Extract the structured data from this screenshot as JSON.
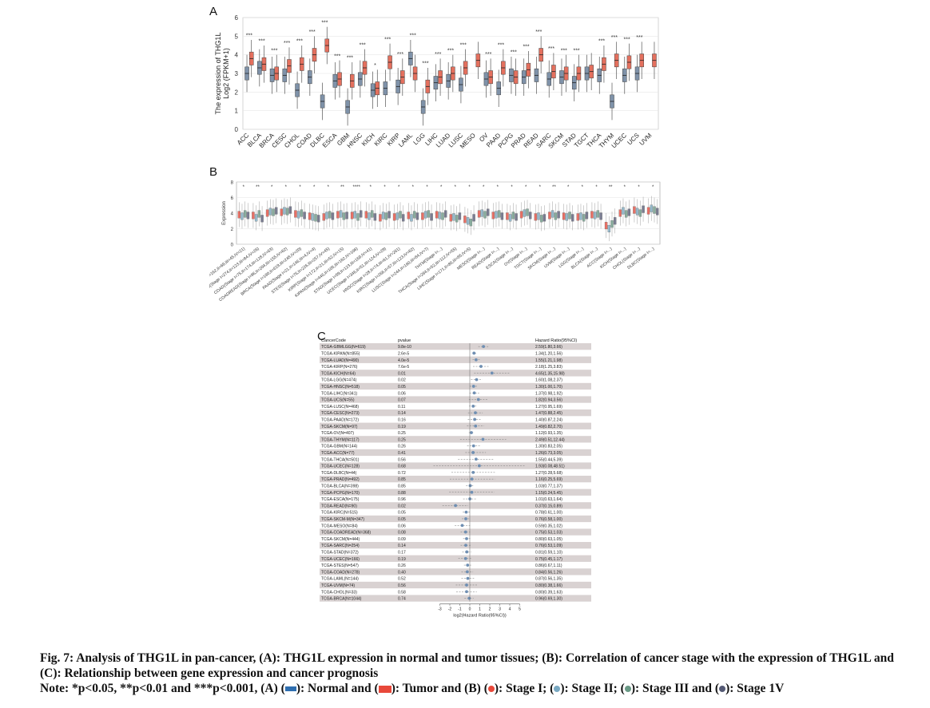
{
  "panels": {
    "a": "A",
    "b": "B",
    "c": "C"
  },
  "colors": {
    "normal": "#7f92a9",
    "tumor": "#e4705e",
    "stage1": "#e8483a",
    "stage2": "#7aa9c2",
    "stage3": "#6a9a86",
    "stage4": "#555a75",
    "forest_point": "#6f8fb3",
    "row_shade": "#d9d2d2"
  },
  "chart_data": [
    {
      "type": "boxplot",
      "title": "",
      "ylabel_line1": "The expression of THG1L",
      "ylabel_line2": "Log2 (FPKM+1)",
      "ylim": [
        0,
        6
      ],
      "yticks": [
        "0",
        "1",
        "2",
        "3",
        "4",
        "5",
        "6"
      ],
      "categories": [
        "ACC",
        "BLCA",
        "BRCA",
        "CESC",
        "CHOL",
        "COAD",
        "DLBC",
        "ESCA",
        "GBM",
        "HNSC",
        "KICH",
        "KIRC",
        "KIRP",
        "LAML",
        "LGG",
        "LIHC",
        "LUAD",
        "LUSC",
        "MESO",
        "OV",
        "PAAD",
        "PCPG",
        "PRAD",
        "READ",
        "SARC",
        "SKCM",
        "STAD",
        "TGCT",
        "THCA",
        "THYM",
        "UCEC",
        "UCS",
        "UVM"
      ],
      "normal_median": [
        3.0,
        3.3,
        2.9,
        2.9,
        2.1,
        2.8,
        1.5,
        2.6,
        1.2,
        2.7,
        2.1,
        2.2,
        2.3,
        3.8,
        1.2,
        2.5,
        2.6,
        2.4,
        null,
        2.7,
        2.2,
        2.9,
        2.8,
        2.9,
        2.7,
        2.8,
        2.5,
        3.0,
        2.9,
        1.5,
        2.9,
        3.0,
        null
      ],
      "tumor_median": [
        3.8,
        3.5,
        3.0,
        3.4,
        3.5,
        4.0,
        4.5,
        2.7,
        2.6,
        3.3,
        2.2,
        3.6,
        2.8,
        3.0,
        2.3,
        2.8,
        3.0,
        3.3,
        3.7,
        2.8,
        3.3,
        2.8,
        3.2,
        4.0,
        3.1,
        3.0,
        3.0,
        3.1,
        3.5,
        3.7,
        3.6,
        3.7,
        3.7
      ],
      "significance": [
        "***",
        "***",
        "***",
        "***",
        "***",
        "***",
        "***",
        "***",
        "***",
        "***",
        "*",
        "***",
        "***",
        "***",
        "***",
        "***",
        "***",
        "***",
        "",
        "***",
        "***",
        "***",
        "***",
        "***",
        "***",
        "***",
        "***",
        "",
        "***",
        "***",
        "***",
        "***",
        ""
      ]
    },
    {
      "type": "boxplot",
      "title": "",
      "ylabel": "Expression",
      "ylim": [
        0,
        8
      ],
      "yticks": [
        "0",
        "2",
        "4",
        "6",
        "8"
      ],
      "categories": [
        "CESC(Stage I=162,II=69,III=45,IV=21)",
        "LUAD(Stage I=274,II=123,III=84,IV=26)",
        "COAD(Stage I=75,II=174,III=128,IV=63)",
        "COADREAD(Stage I=96,II=204,III=155,IV=82)",
        "BRCA(Stage I=180,II=619,III=248,IV=20)",
        "PAAD(Stage I=21,II=146,III=4,IV=4)",
        "STES(Stage I=76,II=226,III=257,IV=45)",
        "KIRP(Stage I=172,II=21,III=52,IV=15)",
        "KIPAN(Stage I=446,II=105,III=182,IV=106)",
        "STAD(Stage I=59,II=123,III=169,IV=41)",
        "UCEC(Stage I=346,II=51,III=124,IV=29)",
        "HNSC(Stage I=28,II=74,III=81,IV=261)",
        "KIRC(Stage I=266,II=57,III=123,IV=82)",
        "LUSC(Stage I=244,II=160,III=84,IV=7)",
        "THYM(Stage I=...)",
        "THCA(Stage I=284,II=52,III=112,IV=55)",
        "LIHC(Stage I=171,II=86,III=85,IV=5)",
        "MESO(Stage I=...)",
        "READ(Stage I=...)",
        "ESCA(Stage I=...)",
        "OV(Stage I=...)",
        "TGCT(Stage I=...)",
        "SKCM(Stage I=...)",
        "UVM(Stage I=...)",
        "LGG(Stage I=...)",
        "BLCA(Stage I=...)",
        "ACC(Stage I=...)",
        "KICH(Stage I=...)",
        "CHOL(Stage I=...)",
        "DLBC(Stage I=...)"
      ],
      "stage_means": [
        [
          3.8,
          3.6,
          3.9,
          3.7
        ],
        [
          3.7,
          3.4,
          3.9,
          3.3
        ],
        [
          4.0,
          4.2,
          4.1,
          4.3
        ],
        [
          4.1,
          4.3,
          4.2,
          4.4
        ],
        [
          3.9,
          3.8,
          4.0,
          3.7
        ],
        [
          3.6,
          3.5,
          3.4,
          3.3
        ],
        [
          3.5,
          3.7,
          3.8,
          3.6
        ],
        [
          3.8,
          3.9,
          3.6,
          3.7
        ],
        [
          3.7,
          3.8,
          3.5,
          3.9
        ],
        [
          3.8,
          3.6,
          3.9,
          3.5
        ],
        [
          3.4,
          3.7,
          3.6,
          3.8
        ],
        [
          3.5,
          3.6,
          3.8,
          3.4
        ],
        [
          3.7,
          3.4,
          3.8,
          3.6
        ],
        [
          3.6,
          3.8,
          3.9,
          3.5
        ],
        [
          3.8,
          3.7,
          3.6,
          3.9
        ],
        [
          3.4,
          3.5,
          3.3,
          3.6
        ],
        [
          3.2,
          3.0,
          2.8,
          3.4
        ],
        [
          3.9,
          4.0,
          3.8,
          4.1
        ],
        [
          3.7,
          3.8,
          3.9,
          3.6
        ],
        [
          3.6,
          3.4,
          3.7,
          3.5
        ],
        [
          3.8,
          4.0,
          4.1,
          3.7
        ],
        [
          3.5,
          3.6,
          3.3,
          3.4
        ],
        [
          3.7,
          3.9,
          3.6,
          3.8
        ],
        [
          3.6,
          3.5,
          3.7,
          3.4
        ],
        [
          3.5,
          3.6,
          3.4,
          3.7
        ],
        [
          3.8,
          3.7,
          3.9,
          3.6
        ],
        [
          2.4,
          2.0,
          2.6,
          3.0
        ],
        [
          4.0,
          4.3,
          3.9,
          4.1
        ],
        [
          4.4,
          4.2,
          4.0,
          4.5
        ],
        [
          4.3,
          4.6,
          4.4,
          4.2
        ]
      ],
      "significance": [
        "*",
        "**",
        "*",
        "*",
        "*",
        "*",
        "*",
        "**",
        "****",
        "*",
        "*",
        "*",
        "*",
        "*",
        "*",
        "*",
        "*",
        "*",
        "*",
        "*",
        "*",
        "*",
        "**",
        "*",
        "*",
        "*",
        "**",
        "*",
        "*",
        "*"
      ]
    },
    {
      "type": "forest",
      "title": "",
      "headers": [
        "CancerCode",
        "pvalue",
        "Hazard Ratio(95%CI)"
      ],
      "xlabel": "log2(Hazard Ratio(95%CI))",
      "xticks": [
        "-3",
        "-2",
        "-1",
        "0",
        "1",
        "2",
        "3",
        "4",
        "5"
      ],
      "xlim": [
        -4,
        6
      ],
      "rows": [
        {
          "name": "TCGA-GBMLGG(N=619)",
          "p": "9.8e-10",
          "hr": "2.59(1.80,3.66)",
          "log2hr": 1.37,
          "lo": 0.85,
          "hi": 1.87
        },
        {
          "name": "TCGA-KIPAN(N=855)",
          "p": "2.6e-5",
          "hr": "1.34(1.20,1.56)",
          "log2hr": 0.42,
          "lo": 0.26,
          "hi": 0.64
        },
        {
          "name": "TCGA-LUAD(N=490)",
          "p": "4.0e-5",
          "hr": "1.55(1.21,1.98)",
          "log2hr": 0.63,
          "lo": 0.28,
          "hi": 0.99
        },
        {
          "name": "TCGA-KIRP(N=276)",
          "p": "7.6e-5",
          "hr": "2.18(1.25,3.83)",
          "log2hr": 1.12,
          "lo": 0.32,
          "hi": 1.94
        },
        {
          "name": "TCGA-KICH(N=64)",
          "p": "0.01",
          "hr": "4.65(1.35,15.98)",
          "log2hr": 2.22,
          "lo": 0.43,
          "hi": 4.0
        },
        {
          "name": "TCGA-LGG(N=474)",
          "p": "0.02",
          "hr": "1.60(1.08,2.37)",
          "log2hr": 0.68,
          "lo": 0.11,
          "hi": 1.24
        },
        {
          "name": "TCGA-HNSC(N=518)",
          "p": "0.05",
          "hr": "1.30(1.00,1.70)",
          "log2hr": 0.38,
          "lo": 0.0,
          "hi": 0.77
        },
        {
          "name": "TCGA-LIHC(N=341)",
          "p": "0.06",
          "hr": "1.37(0.98,1.92)",
          "log2hr": 0.45,
          "lo": -0.03,
          "hi": 0.94
        },
        {
          "name": "TCGA-UCS(N=55)",
          "p": "0.07",
          "hr": "1.82(0.94,3.56)",
          "log2hr": 0.86,
          "lo": -0.09,
          "hi": 1.83
        },
        {
          "name": "TCGA-LUSC(N=468)",
          "p": "0.11",
          "hr": "1.27(0.95,1.69)",
          "log2hr": 0.34,
          "lo": -0.07,
          "hi": 0.76
        },
        {
          "name": "TCGA-CESC(N=273)",
          "p": "0.14",
          "hr": "1.47(0.88,2.45)",
          "log2hr": 0.56,
          "lo": -0.18,
          "hi": 1.29
        },
        {
          "name": "TCGA-PAAD(N=172)",
          "p": "0.16",
          "hr": "1.40(0.87,2.24)",
          "log2hr": 0.49,
          "lo": -0.2,
          "hi": 1.16
        },
        {
          "name": "TCGA-SKCM(N=97)",
          "p": "0.19",
          "hr": "1.49(0.82,2.70)",
          "log2hr": 0.58,
          "lo": -0.29,
          "hi": 1.43
        },
        {
          "name": "TCGA-OV(N=407)",
          "p": "0.25",
          "hr": "1.12(0.93,1.35)",
          "log2hr": 0.16,
          "lo": -0.1,
          "hi": 0.43
        },
        {
          "name": "TCGA-THYM(N=117)",
          "p": "0.25",
          "hr": "2.49(0.51,12.44)",
          "log2hr": 1.32,
          "lo": -0.97,
          "hi": 3.64
        },
        {
          "name": "TCGA-GBM(N=144)",
          "p": "0.26",
          "hr": "1.30(0.83,2.05)",
          "log2hr": 0.38,
          "lo": -0.27,
          "hi": 1.04
        },
        {
          "name": "TCGA-ACC(N=77)",
          "p": "0.41",
          "hr": "1.26(0.73,3.05)",
          "log2hr": 0.33,
          "lo": -0.45,
          "hi": 1.61
        },
        {
          "name": "TCGA-THCA(N=501)",
          "p": "0.56",
          "hr": "1.55(0.44,5.39)",
          "log2hr": 0.63,
          "lo": -1.18,
          "hi": 2.43
        },
        {
          "name": "TCGA-UCEC(N=128)",
          "p": "0.68",
          "hr": "1.93(0.08,48.51)",
          "log2hr": 0.95,
          "lo": -3.64,
          "hi": 5.6
        },
        {
          "name": "TCGA-DLBC(N=44)",
          "p": "0.72",
          "hr": "1.27(0.28,5.68)",
          "log2hr": 0.34,
          "lo": -1.84,
          "hi": 2.51
        },
        {
          "name": "TCGA-PRAD(N=492)",
          "p": "0.85",
          "hr": "1.16(0.25,5.69)",
          "log2hr": 0.21,
          "lo": -2.0,
          "hi": 2.51
        },
        {
          "name": "TCGA-BLCA(N=398)",
          "p": "0.85",
          "hr": "1.03(0.77,1.37)",
          "log2hr": 0.04,
          "lo": -0.38,
          "hi": 0.45
        },
        {
          "name": "TCGA-PCPG(N=170)",
          "p": "0.88",
          "hr": "1.15(0.24,5.45)",
          "log2hr": 0.2,
          "lo": -2.06,
          "hi": 2.45
        },
        {
          "name": "TCGA-ESCA(N=175)",
          "p": "0.96",
          "hr": "1.01(0.63,1.64)",
          "log2hr": 0.01,
          "lo": -0.67,
          "hi": 0.71
        },
        {
          "name": "TCGA-READ(N=90)",
          "p": "0.02",
          "hr": "0.37(0.15,0.89)",
          "log2hr": -1.43,
          "lo": -2.74,
          "hi": -0.17
        },
        {
          "name": "TCGA-KIRC(N=515)",
          "p": "0.05",
          "hr": "0.78(0.61,1.00)",
          "log2hr": -0.36,
          "lo": -0.71,
          "hi": 0.0
        },
        {
          "name": "TCGA-SKCM-M(N=347)",
          "p": "0.05",
          "hr": "0.76(0.58,1.00)",
          "log2hr": -0.4,
          "lo": -0.79,
          "hi": 0.0
        },
        {
          "name": "TCGA-MESO(N=84)",
          "p": "0.06",
          "hr": "0.59(0.35,1.02)",
          "log2hr": -0.76,
          "lo": -1.51,
          "hi": 0.03
        },
        {
          "name": "TCGA-COADREAD(N=368)",
          "p": "0.08",
          "hr": "0.75(0.53,1.03)",
          "log2hr": -0.42,
          "lo": -0.92,
          "hi": 0.04
        },
        {
          "name": "TCGA-SKCM(N=444)",
          "p": "0.09",
          "hr": "0.80(0.63,1.05)",
          "log2hr": -0.32,
          "lo": -0.67,
          "hi": 0.07
        },
        {
          "name": "TCGA-SARC(N=254)",
          "p": "0.14",
          "hr": "0.76(0.53,1.09)",
          "log2hr": -0.4,
          "lo": -0.92,
          "hi": 0.12
        },
        {
          "name": "TCGA-STAD(N=372)",
          "p": "0.17",
          "hr": "0.81(0.59,1.10)",
          "log2hr": -0.3,
          "lo": -0.76,
          "hi": 0.14
        },
        {
          "name": "TCGA-UCEC(N=166)",
          "p": "0.19",
          "hr": "0.75(0.45,1.17)",
          "log2hr": -0.42,
          "lo": -1.15,
          "hi": 0.23
        },
        {
          "name": "TCGA-STES(N=547)",
          "p": "0.26",
          "hr": "0.86(0.67,1.11)",
          "log2hr": -0.22,
          "lo": -0.58,
          "hi": 0.15
        },
        {
          "name": "TCGA-COAD(N=278)",
          "p": "0.40",
          "hr": "0.84(0.56,1.26)",
          "log2hr": -0.25,
          "lo": -0.84,
          "hi": 0.33
        },
        {
          "name": "TCGA-LAML(N=144)",
          "p": "0.52",
          "hr": "0.87(0.56,1.35)",
          "log2hr": -0.2,
          "lo": -0.84,
          "hi": 0.43
        },
        {
          "name": "TCGA-UVM(N=74)",
          "p": "0.56",
          "hr": "0.80(0.38,1.66)",
          "log2hr": -0.32,
          "lo": -1.4,
          "hi": 0.73
        },
        {
          "name": "TCGA-CHOL(N=33)",
          "p": "0.58",
          "hr": "0.80(0.39,1.63)",
          "log2hr": -0.32,
          "lo": -1.36,
          "hi": 0.7
        },
        {
          "name": "TCGA-BRCA(N=1044)",
          "p": "0.74",
          "hr": "0.96(0.69,1.30)",
          "log2hr": -0.06,
          "lo": -0.54,
          "hi": 0.38
        }
      ]
    }
  ],
  "caption": {
    "line1": "Fig. 7: Analysis of THG1L in pan-cancer, (A): THG1L expression in normal and tumor tissues; (B): Correlation of cancer stage with the expression of THG1L and (C): Relationship between gene expression and cancer prognosis",
    "note_prefix": "Note: *p<0.05, **p<0.01 and ***p<0.001, (A) (",
    "note_normal": "): Normal and (",
    "note_tumor": "): Tumor and (B) (",
    "note_s1": "): Stage I; (",
    "note_s2": "): Stage II; (",
    "note_s3": "): Stage III and (",
    "note_s4": "): Stage 1V"
  }
}
